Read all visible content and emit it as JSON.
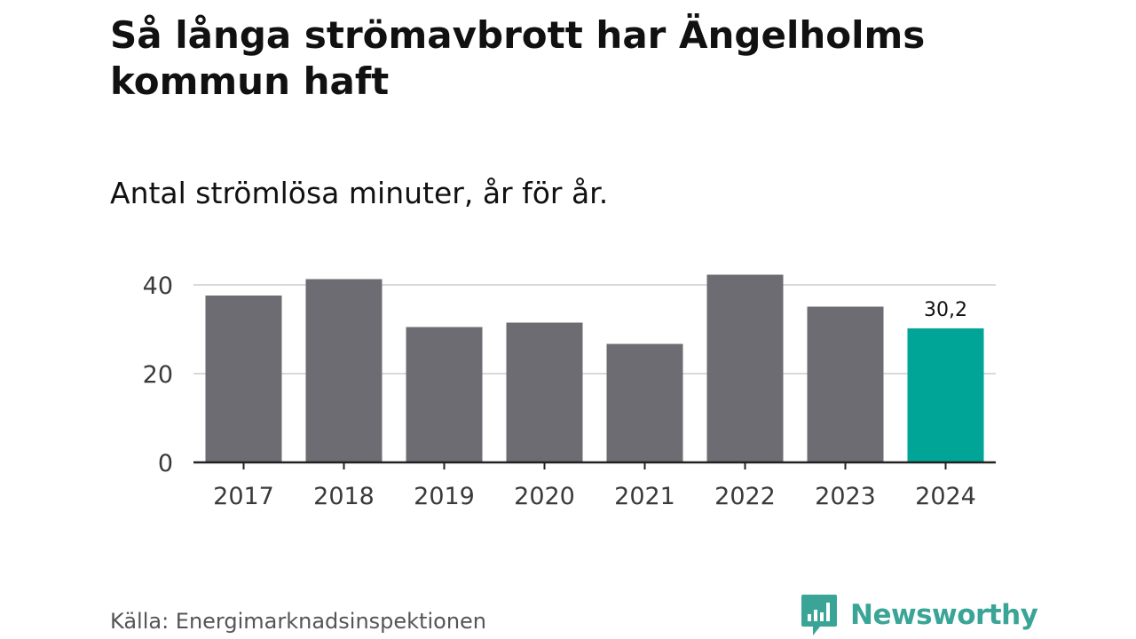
{
  "title": "Så långa strömavbrott har Ängelholms kommun haft",
  "subtitle": "Antal strömlösa minuter, år för år.",
  "source": "Källa: Energimarknadsinspektionen",
  "brand": {
    "name": "Newsworthy",
    "icon": "newsworthy-logo-icon",
    "color": "#3aa597"
  },
  "colors": {
    "bar": "#6d6c73",
    "highlight": "#00a597",
    "grid": "#d9d9d9",
    "axis": "#222222"
  },
  "chart_data": {
    "type": "bar",
    "title": "Så långa strömavbrott har Ängelholms kommun haft",
    "subtitle": "Antal strömlösa minuter, år för år.",
    "xlabel": "",
    "ylabel": "",
    "categories": [
      "2017",
      "2018",
      "2019",
      "2020",
      "2021",
      "2022",
      "2023",
      "2024"
    ],
    "values": [
      37.6,
      41.3,
      30.5,
      31.5,
      26.7,
      42.3,
      35.1,
      30.2
    ],
    "highlight_index": 7,
    "data_labels": [
      null,
      null,
      null,
      null,
      null,
      null,
      null,
      "30,2"
    ],
    "y_ticks": [
      0,
      20,
      40
    ],
    "y_tick_labels": [
      "0",
      "20",
      "40"
    ],
    "ylim": [
      0,
      45
    ],
    "grid": true
  }
}
